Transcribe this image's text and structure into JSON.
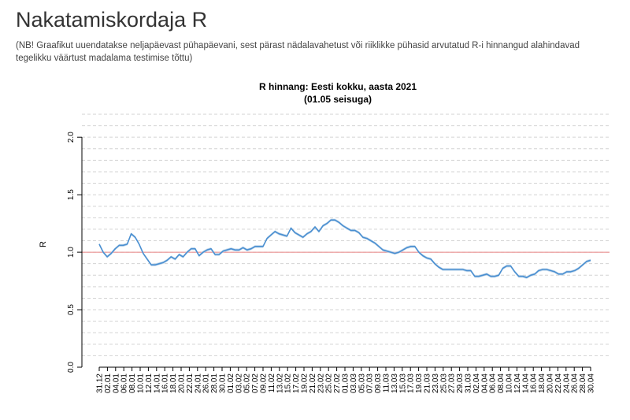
{
  "page": {
    "title": "Nakatamiskordaja R",
    "note": "(NB! Graafikut uuendatakse neljapäevast pühapäevani, sest pärast nädalavahetust või riiklikke pühasid arvutatud R-i hinnangud alahindavad tegelikku väärtust madalama testimise tõttu)"
  },
  "chart_data": {
    "type": "line",
    "title": "R hinnang: Eesti kokku, aasta 2021",
    "subtitle": "(01.05 seisuga)",
    "xlabel": "",
    "ylabel": "R",
    "ylim": [
      0,
      2.2
    ],
    "yticks": [
      0.0,
      0.5,
      1.0,
      1.5,
      2.0
    ],
    "ytick_labels": [
      "0.0",
      "0.5",
      "1.0",
      "1.5",
      "2.0"
    ],
    "reference_line": 1.0,
    "grid": true,
    "x_tick_labels": [
      "31.12",
      "02.01",
      "04.01",
      "06.01",
      "08.01",
      "10.01",
      "12.01",
      "14.01",
      "16.01",
      "18.01",
      "20.01",
      "22.01",
      "24.01",
      "26.01",
      "28.01",
      "30.01",
      "01.02",
      "03.02",
      "05.02",
      "07.02",
      "09.02",
      "11.02",
      "13.02",
      "15.02",
      "17.02",
      "19.02",
      "21.02",
      "23.02",
      "25.02",
      "27.02",
      "01.03",
      "03.03",
      "05.03",
      "07.03",
      "09.03",
      "11.03",
      "13.03",
      "15.03",
      "17.03",
      "19.03",
      "21.03",
      "23.03",
      "25.03",
      "27.03",
      "29.03",
      "31.03",
      "02.04",
      "04.04",
      "06.04",
      "08.04",
      "10.04",
      "12.04",
      "14.04",
      "16.04",
      "18.04",
      "20.04",
      "22.04",
      "24.04",
      "26.04",
      "28.04",
      "30.04"
    ],
    "series": [
      {
        "name": "R",
        "color": "#4a8fd1",
        "band_color": "#bcd3e8",
        "values": [
          1.07,
          1.0,
          0.96,
          0.99,
          1.03,
          1.06,
          1.06,
          1.07,
          1.16,
          1.13,
          1.07,
          0.99,
          0.94,
          0.89,
          0.89,
          0.9,
          0.91,
          0.93,
          0.96,
          0.94,
          0.98,
          0.96,
          1.0,
          1.03,
          1.03,
          0.97,
          1.0,
          1.02,
          1.03,
          0.98,
          0.98,
          1.01,
          1.02,
          1.03,
          1.02,
          1.02,
          1.04,
          1.02,
          1.03,
          1.05,
          1.05,
          1.05,
          1.12,
          1.15,
          1.18,
          1.16,
          1.15,
          1.14,
          1.21,
          1.17,
          1.15,
          1.13,
          1.16,
          1.18,
          1.22,
          1.18,
          1.23,
          1.25,
          1.28,
          1.28,
          1.26,
          1.23,
          1.21,
          1.19,
          1.19,
          1.17,
          1.13,
          1.12,
          1.1,
          1.08,
          1.05,
          1.02,
          1.01,
          1.0,
          0.99,
          1.0,
          1.02,
          1.04,
          1.05,
          1.05,
          1.0,
          0.97,
          0.95,
          0.94,
          0.9,
          0.87,
          0.85,
          0.85,
          0.85,
          0.85,
          0.85,
          0.85,
          0.84,
          0.84,
          0.79,
          0.79,
          0.8,
          0.81,
          0.79,
          0.79,
          0.8,
          0.86,
          0.88,
          0.88,
          0.83,
          0.79,
          0.79,
          0.78,
          0.8,
          0.81,
          0.84,
          0.85,
          0.85,
          0.84,
          0.83,
          0.81,
          0.81,
          0.83,
          0.83,
          0.84,
          0.86,
          0.89,
          0.92,
          0.93
        ]
      }
    ]
  }
}
